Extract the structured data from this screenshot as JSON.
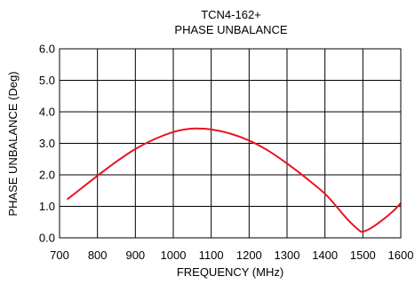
{
  "chart_data": {
    "type": "line",
    "title": "TCN4-162+",
    "subtitle": "PHASE UNBALANCE",
    "xlabel": "FREQUENCY (MHz)",
    "ylabel": "PHASE UNBALANCE (Deg)",
    "xlim": [
      700,
      1600
    ],
    "ylim": [
      0,
      6
    ],
    "xticks": [
      "700",
      "800",
      "900",
      "1000",
      "1100",
      "1200",
      "1300",
      "1400",
      "1500",
      "1600"
    ],
    "yticks": [
      "0.0",
      "1.0",
      "2.0",
      "3.0",
      "4.0",
      "5.0",
      "6.0"
    ],
    "grid": true,
    "series": [
      {
        "color": "#e8141e",
        "x": [
          720,
          750,
          800,
          850,
          900,
          950,
          1000,
          1030,
          1060,
          1100,
          1150,
          1200,
          1250,
          1300,
          1350,
          1400,
          1430,
          1460,
          1490,
          1500,
          1520,
          1550,
          1580,
          1600
        ],
        "y": [
          1.22,
          1.5,
          1.97,
          2.42,
          2.82,
          3.13,
          3.36,
          3.44,
          3.47,
          3.44,
          3.31,
          3.09,
          2.77,
          2.36,
          1.9,
          1.4,
          1.0,
          0.58,
          0.24,
          0.2,
          0.3,
          0.55,
          0.85,
          1.1
        ]
      }
    ]
  }
}
